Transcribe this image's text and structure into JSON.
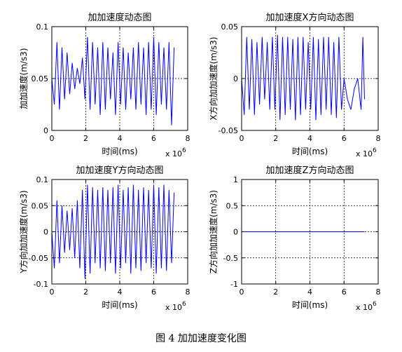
{
  "figure": {
    "caption": "图 4  加加速度变化图",
    "line_color": "#0000ff",
    "grid_style": "dashed",
    "exponent_label": {
      "base": "x 10",
      "power": "6"
    }
  },
  "chart_data": [
    {
      "type": "line",
      "title": "加加速度动态图",
      "xlabel": "时间(ms)",
      "ylabel": "加加速度(m/s3)",
      "xlim": [
        0,
        8
      ],
      "ylim": [
        0,
        0.1
      ],
      "xticks": [
        0,
        2,
        4,
        6,
        8
      ],
      "yticks": [
        0,
        0.05,
        0.1
      ],
      "xtick_labels": [
        "0",
        "2",
        "4",
        "6",
        "8"
      ],
      "ytick_labels": [
        "0",
        "0.05",
        "0.1"
      ],
      "grid": true,
      "x_multiplier": "x 10^6",
      "x": [
        0.0,
        0.15,
        0.3,
        0.45,
        0.6,
        0.75,
        0.9,
        1.05,
        1.2,
        1.35,
        1.5,
        1.65,
        1.8,
        1.95,
        2.1,
        2.25,
        2.4,
        2.55,
        2.7,
        2.85,
        3.0,
        3.15,
        3.3,
        3.45,
        3.6,
        3.75,
        3.9,
        4.05,
        4.2,
        4.35,
        4.5,
        4.65,
        4.8,
        4.95,
        5.1,
        5.25,
        5.4,
        5.55,
        5.7,
        5.85,
        6.0,
        6.15,
        6.3,
        6.45,
        6.6,
        6.75,
        6.9,
        7.05,
        7.2
      ],
      "values": [
        0.05,
        0.025,
        0.085,
        0.02,
        0.08,
        0.03,
        0.075,
        0.035,
        0.065,
        0.04,
        0.06,
        0.045,
        0.07,
        0.03,
        0.09,
        0.02,
        0.085,
        0.025,
        0.08,
        0.015,
        0.085,
        0.02,
        0.08,
        0.03,
        0.075,
        0.015,
        0.085,
        0.025,
        0.08,
        0.02,
        0.075,
        0.03,
        0.08,
        0.02,
        0.085,
        0.025,
        0.08,
        0.015,
        0.085,
        0.02,
        0.09,
        0.015,
        0.085,
        0.025,
        0.08,
        0.02,
        0.085,
        0.005,
        0.08
      ]
    },
    {
      "type": "line",
      "title": "加加速度X方向动态图",
      "xlabel": "时间(ms)",
      "ylabel": "X方向加加速度(m/s3)",
      "xlim": [
        0,
        8
      ],
      "ylim": [
        -0.05,
        0.05
      ],
      "xticks": [
        0,
        2,
        4,
        6,
        8
      ],
      "yticks": [
        -0.05,
        0,
        0.05
      ],
      "xtick_labels": [
        "0",
        "2",
        "4",
        "6",
        "8"
      ],
      "ytick_labels": [
        "-0.05",
        "0",
        "0.05"
      ],
      "grid": true,
      "x_multiplier": "x 10^6",
      "x": [
        0.0,
        0.15,
        0.3,
        0.45,
        0.6,
        0.75,
        0.9,
        1.05,
        1.2,
        1.35,
        1.5,
        1.65,
        1.8,
        1.95,
        2.1,
        2.25,
        2.4,
        2.55,
        2.7,
        2.85,
        3.0,
        3.15,
        3.3,
        3.45,
        3.6,
        3.75,
        3.9,
        4.05,
        4.2,
        4.35,
        4.5,
        4.65,
        4.8,
        4.95,
        5.1,
        5.25,
        5.4,
        5.55,
        5.7,
        5.85,
        6.0,
        6.2,
        6.4,
        6.6,
        6.8,
        7.0,
        7.1,
        7.2
      ],
      "values": [
        0.0,
        -0.035,
        0.04,
        -0.03,
        0.038,
        -0.035,
        0.035,
        -0.025,
        0.04,
        -0.02,
        0.035,
        -0.03,
        0.04,
        -0.03,
        0.042,
        -0.04,
        0.04,
        -0.035,
        0.04,
        -0.03,
        0.038,
        -0.04,
        0.04,
        -0.035,
        0.04,
        -0.03,
        0.035,
        -0.03,
        0.04,
        -0.04,
        0.038,
        -0.035,
        0.04,
        -0.03,
        0.04,
        -0.035,
        0.035,
        -0.038,
        0.04,
        -0.03,
        0.0,
        -0.02,
        -0.03,
        -0.01,
        0.0,
        -0.03,
        0.04,
        -0.02
      ]
    },
    {
      "type": "line",
      "title": "加加速度Y方向动态图",
      "xlabel": "时间(ms)",
      "ylabel": "Y方向加加速度(m/s3)",
      "xlim": [
        0,
        8
      ],
      "ylim": [
        -0.1,
        0.1
      ],
      "xticks": [
        0,
        2,
        4,
        6,
        8
      ],
      "yticks": [
        -0.1,
        -0.05,
        0,
        0.05,
        0.1
      ],
      "xtick_labels": [
        "0",
        "2",
        "4",
        "6",
        "8"
      ],
      "ytick_labels": [
        "-0.1",
        "-0.05",
        "0",
        "0.05",
        "0.1"
      ],
      "grid": true,
      "x_multiplier": "x 10^6",
      "x": [
        0.0,
        0.15,
        0.3,
        0.45,
        0.6,
        0.75,
        0.9,
        1.05,
        1.2,
        1.35,
        1.5,
        1.65,
        1.8,
        1.95,
        2.1,
        2.25,
        2.4,
        2.55,
        2.7,
        2.85,
        3.0,
        3.15,
        3.3,
        3.45,
        3.6,
        3.75,
        3.9,
        4.05,
        4.2,
        4.35,
        4.5,
        4.65,
        4.8,
        4.95,
        5.1,
        5.25,
        5.4,
        5.55,
        5.7,
        5.85,
        6.0,
        6.15,
        6.3,
        6.45,
        6.6,
        6.75,
        6.9,
        7.05,
        7.2
      ],
      "values": [
        0.0,
        -0.07,
        0.06,
        -0.06,
        0.05,
        -0.04,
        0.04,
        -0.035,
        0.045,
        -0.05,
        0.06,
        -0.07,
        0.08,
        -0.09,
        0.09,
        -0.08,
        0.085,
        -0.06,
        0.08,
        -0.07,
        0.085,
        -0.075,
        0.08,
        -0.06,
        0.085,
        -0.08,
        0.09,
        -0.07,
        0.08,
        -0.06,
        0.085,
        -0.08,
        0.09,
        -0.07,
        0.08,
        -0.075,
        0.085,
        -0.06,
        0.08,
        -0.07,
        0.09,
        -0.08,
        0.085,
        -0.07,
        0.09,
        -0.075,
        0.08,
        -0.06,
        0.075
      ]
    },
    {
      "type": "line",
      "title": "加加速度Z方向动态图",
      "xlabel": "时间(ms)",
      "ylabel": "Z方向加加速度(m/s3)",
      "xlim": [
        0,
        8
      ],
      "ylim": [
        -1,
        1
      ],
      "xticks": [
        0,
        2,
        4,
        6,
        8
      ],
      "yticks": [
        -1,
        -0.5,
        0,
        0.5,
        1
      ],
      "xtick_labels": [
        "0",
        "2",
        "4",
        "6",
        "8"
      ],
      "ytick_labels": [
        "-1",
        "-0.5",
        "0",
        "0.5",
        "1"
      ],
      "grid": true,
      "x_multiplier": "x 10^6",
      "x": [
        0,
        7.2
      ],
      "values": [
        0,
        0
      ]
    }
  ]
}
